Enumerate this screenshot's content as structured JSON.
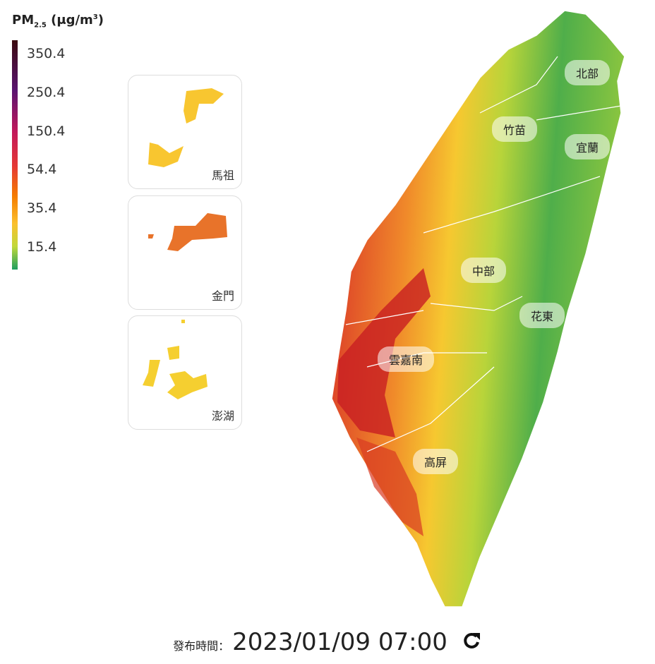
{
  "legend": {
    "title": {
      "main": "PM",
      "sub": "2.5",
      "unit": " (μg/m",
      "sup": "3",
      "close": ")"
    },
    "levels": [
      350.4,
      250.4,
      150.4,
      54.4,
      35.4,
      15.4
    ]
  },
  "insets": [
    {
      "label": "馬祖"
    },
    {
      "label": "金門"
    },
    {
      "label": "澎湖"
    }
  ],
  "regions": [
    {
      "label": "北部"
    },
    {
      "label": "竹苗"
    },
    {
      "label": "宜蘭"
    },
    {
      "label": "中部"
    },
    {
      "label": "花東"
    },
    {
      "label": "雲嘉南"
    },
    {
      "label": "高屏"
    }
  ],
  "footer": {
    "label": "發布時間：",
    "time": "2023/01/09 07:00"
  }
}
